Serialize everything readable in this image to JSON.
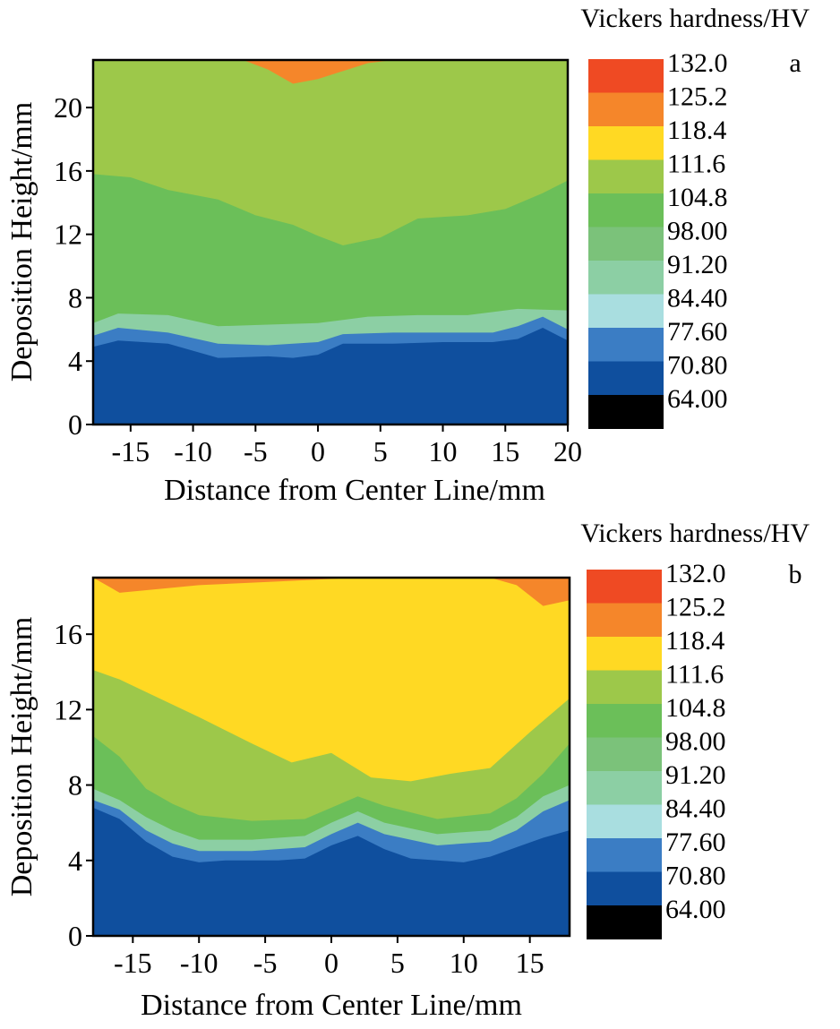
{
  "colorbar": {
    "title": "Vickers hardness/HV",
    "levels": [
      "132.0",
      "125.2",
      "118.4",
      "111.6",
      "104.8",
      "98.00",
      "91.20",
      "84.40",
      "77.60",
      "70.80",
      "64.00"
    ],
    "colors": [
      "#EF4A23",
      "#F5862A",
      "#FFD923",
      "#9DC84A",
      "#6BBF59",
      "#7BC27A",
      "#8CCFA4",
      "#A9DEE0",
      "#3B7DC4",
      "#0F4F9E",
      "#000000"
    ]
  },
  "chart_data": [
    {
      "panel": "a",
      "type": "heatmap",
      "title": "Vickers hardness/HV",
      "xlabel": "Distance from Center Line/mm",
      "ylabel": "Deposition Height/mm",
      "xlim": [
        -18,
        20
      ],
      "ylim": [
        0,
        23
      ],
      "xticks": [
        "-15",
        "-10",
        "-5",
        "0",
        "5",
        "10",
        "15",
        "20"
      ],
      "yticks": [
        "0",
        "4",
        "8",
        "12",
        "16",
        "20"
      ],
      "region_levels": [
        "70.80",
        "77.60",
        "91.20",
        "104.8",
        "111.6",
        "118.4",
        "125.2"
      ],
      "bands": [
        {
          "name": "70.80",
          "upper_boundary": [
            [
              -18,
              4.9
            ],
            [
              -16,
              5.3
            ],
            [
              -12,
              5.1
            ],
            [
              -8,
              4.2
            ],
            [
              -4,
              4.3
            ],
            [
              -2,
              4.2
            ],
            [
              0,
              4.4
            ],
            [
              2,
              5.1
            ],
            [
              6,
              5.1
            ],
            [
              10,
              5.2
            ],
            [
              14,
              5.2
            ],
            [
              16,
              5.4
            ],
            [
              18,
              6.1
            ],
            [
              20,
              5.3
            ]
          ]
        },
        {
          "name": "77.60",
          "upper_boundary": [
            [
              -18,
              5.6
            ],
            [
              -16,
              6.1
            ],
            [
              -12,
              5.8
            ],
            [
              -8,
              5.1
            ],
            [
              -4,
              5.0
            ],
            [
              0,
              5.2
            ],
            [
              2,
              5.7
            ],
            [
              6,
              5.8
            ],
            [
              10,
              5.8
            ],
            [
              14,
              5.8
            ],
            [
              16,
              6.2
            ],
            [
              18,
              6.8
            ],
            [
              20,
              6.0
            ]
          ]
        },
        {
          "name": "91.20",
          "upper_boundary": [
            [
              -18,
              6.4
            ],
            [
              -16,
              7.0
            ],
            [
              -12,
              6.9
            ],
            [
              -8,
              6.2
            ],
            [
              -4,
              6.3
            ],
            [
              0,
              6.4
            ],
            [
              4,
              6.8
            ],
            [
              8,
              6.9
            ],
            [
              12,
              6.9
            ],
            [
              16,
              7.3
            ],
            [
              20,
              7.2
            ]
          ]
        },
        {
          "name": "104.8",
          "upper_boundary": [
            [
              -18,
              15.8
            ],
            [
              -15,
              15.6
            ],
            [
              -12,
              14.8
            ],
            [
              -8,
              14.2
            ],
            [
              -5,
              13.2
            ],
            [
              -2,
              12.6
            ],
            [
              0,
              11.9
            ],
            [
              2,
              11.3
            ],
            [
              5,
              11.8
            ],
            [
              8,
              13.0
            ],
            [
              12,
              13.2
            ],
            [
              15,
              13.6
            ],
            [
              18,
              14.6
            ],
            [
              20,
              15.4
            ]
          ]
        },
        {
          "name": "111.6",
          "upper_boundary": [
            [
              -18,
              23
            ],
            [
              20,
              23
            ]
          ]
        },
        {
          "name": "118.4",
          "upper_boundary": [
            [
              -6,
              23
            ],
            [
              -4,
              22.4
            ],
            [
              -2,
              21.5
            ],
            [
              0,
              21.8
            ],
            [
              2,
              22.3
            ],
            [
              4,
              22.8
            ],
            [
              6,
              23
            ]
          ]
        },
        {
          "name": "125.2",
          "upper_boundary": [
            [
              -3,
              23
            ],
            [
              -2,
              22.6
            ],
            [
              0,
              22.7
            ],
            [
              2,
              23
            ]
          ]
        }
      ]
    },
    {
      "panel": "b",
      "type": "heatmap",
      "title": "Vickers hardness/HV",
      "xlabel": "Distance from Center Line/mm",
      "ylabel": "Deposition Height/mm",
      "xlim": [
        -18,
        18
      ],
      "ylim": [
        0,
        19
      ],
      "xticks": [
        "-15",
        "-10",
        "-5",
        "0",
        "5",
        "10",
        "15"
      ],
      "yticks": [
        "0",
        "4",
        "8",
        "12",
        "16"
      ],
      "region_levels": [
        "70.80",
        "77.60",
        "91.20",
        "104.8",
        "111.6",
        "118.4",
        "125.2"
      ],
      "bands": [
        {
          "name": "70.80",
          "upper_boundary": [
            [
              -18,
              6.8
            ],
            [
              -16,
              6.2
            ],
            [
              -14,
              5.0
            ],
            [
              -12,
              4.2
            ],
            [
              -10,
              3.9
            ],
            [
              -8,
              4.0
            ],
            [
              -4,
              4.0
            ],
            [
              -2,
              4.1
            ],
            [
              0,
              4.8
            ],
            [
              2,
              5.3
            ],
            [
              4,
              4.6
            ],
            [
              6,
              4.1
            ],
            [
              8,
              4.0
            ],
            [
              10,
              3.9
            ],
            [
              12,
              4.2
            ],
            [
              14,
              4.7
            ],
            [
              16,
              5.2
            ],
            [
              18,
              5.6
            ]
          ]
        },
        {
          "name": "77.60",
          "upper_boundary": [
            [
              -18,
              7.2
            ],
            [
              -16,
              6.7
            ],
            [
              -14,
              5.6
            ],
            [
              -12,
              4.9
            ],
            [
              -10,
              4.5
            ],
            [
              -6,
              4.5
            ],
            [
              -2,
              4.7
            ],
            [
              0,
              5.4
            ],
            [
              2,
              6.0
            ],
            [
              4,
              5.4
            ],
            [
              8,
              4.8
            ],
            [
              12,
              5.0
            ],
            [
              14,
              5.6
            ],
            [
              16,
              6.6
            ],
            [
              18,
              7.2
            ]
          ]
        },
        {
          "name": "91.20",
          "upper_boundary": [
            [
              -18,
              7.8
            ],
            [
              -16,
              7.2
            ],
            [
              -14,
              6.3
            ],
            [
              -12,
              5.6
            ],
            [
              -10,
              5.1
            ],
            [
              -6,
              5.1
            ],
            [
              -2,
              5.3
            ],
            [
              0,
              6.0
            ],
            [
              2,
              6.6
            ],
            [
              4,
              6.0
            ],
            [
              8,
              5.4
            ],
            [
              12,
              5.6
            ],
            [
              14,
              6.3
            ],
            [
              16,
              7.4
            ],
            [
              18,
              8.0
            ]
          ]
        },
        {
          "name": "104.8",
          "upper_boundary": [
            [
              -18,
              10.6
            ],
            [
              -16,
              9.5
            ],
            [
              -14,
              7.8
            ],
            [
              -12,
              7.0
            ],
            [
              -10,
              6.4
            ],
            [
              -6,
              6.1
            ],
            [
              -2,
              6.2
            ],
            [
              0,
              6.8
            ],
            [
              2,
              7.4
            ],
            [
              4,
              6.9
            ],
            [
              8,
              6.2
            ],
            [
              12,
              6.5
            ],
            [
              14,
              7.3
            ],
            [
              16,
              8.6
            ],
            [
              18,
              10.2
            ]
          ]
        },
        {
          "name": "111.6",
          "upper_boundary": [
            [
              -18,
              14.1
            ],
            [
              -16,
              13.6
            ],
            [
              -13,
              12.6
            ],
            [
              -10,
              11.6
            ],
            [
              -6,
              10.2
            ],
            [
              -3,
              9.2
            ],
            [
              0,
              9.7
            ],
            [
              3,
              8.4
            ],
            [
              6,
              8.2
            ],
            [
              9,
              8.6
            ],
            [
              12,
              8.9
            ],
            [
              15,
              10.8
            ],
            [
              18,
              12.6
            ]
          ]
        },
        {
          "name": "118.4",
          "upper_boundary": [
            [
              -18,
              19
            ],
            [
              -16,
              18.2
            ],
            [
              -10,
              18.6
            ],
            [
              -4,
              18.8
            ],
            [
              2,
              19
            ],
            [
              12,
              19
            ],
            [
              14,
              18.6
            ],
            [
              16,
              17.5
            ],
            [
              18,
              17.8
            ]
          ]
        },
        {
          "name": "125.2",
          "upper_boundary": [
            [
              -18,
              19
            ],
            [
              18,
              19
            ]
          ]
        }
      ]
    }
  ]
}
